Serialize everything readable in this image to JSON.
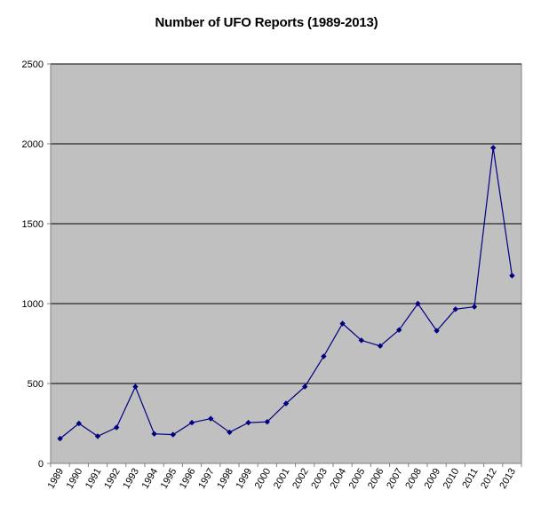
{
  "chart_data": {
    "type": "line",
    "title": "Number of UFO Reports (1989-2013)",
    "xlabel": "",
    "ylabel": "",
    "categories": [
      "1989",
      "1990",
      "1991",
      "1992",
      "1993",
      "1994",
      "1995",
      "1996",
      "1997",
      "1998",
      "1999",
      "2000",
      "2001",
      "2002",
      "2003",
      "2004",
      "2005",
      "2006",
      "2007",
      "2008",
      "2009",
      "2010",
      "2011",
      "2012",
      "2013"
    ],
    "series": [
      {
        "values": [
          155,
          250,
          170,
          225,
          480,
          185,
          180,
          255,
          280,
          195,
          255,
          260,
          375,
          480,
          670,
          875,
          770,
          735,
          835,
          1000,
          830,
          965,
          980,
          1975,
          1175
        ]
      }
    ],
    "ylim": [
      0,
      2500
    ],
    "yticks": [
      0,
      500,
      1000,
      1500,
      2000,
      2500
    ],
    "grid": "horizontal",
    "legend": "none",
    "colors": {
      "plot_background": "#c0c0c0",
      "line": "#000080",
      "gridline": "#000000",
      "axis": "#808080"
    }
  }
}
